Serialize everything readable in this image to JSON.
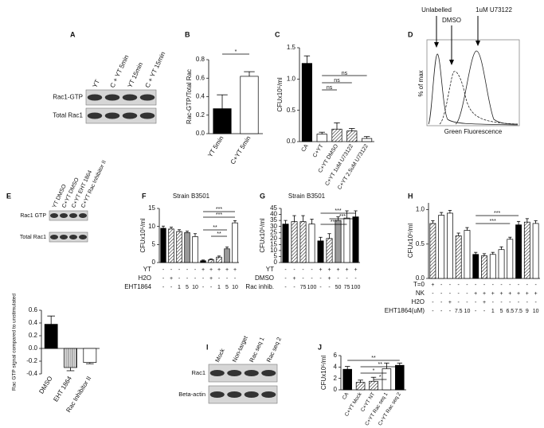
{
  "chart_data": [
    {
      "type": "bar",
      "panel": "B",
      "ylabel": "Rac-GTP/Total Rac",
      "categories": [
        "YT 5min",
        "C+YT 5min"
      ],
      "values": [
        0.27,
        0.62
      ],
      "errors": [
        0.15,
        0.05
      ],
      "fills": [
        "black",
        "white"
      ],
      "ylim": [
        0,
        0.8
      ],
      "yticks": [
        {
          "value": 0,
          "label": "0.0"
        },
        0.2,
        0.4,
        0.6,
        0.8
      ],
      "annotations": [
        "*"
      ]
    },
    {
      "type": "bar",
      "panel": "C",
      "ylabel": "CFUx10⁵/ml",
      "categories": [
        "CA",
        "C+YT",
        "C+YT DMSO",
        "C+YT 1uM U73122",
        "C+YT 2.5uM U73122"
      ],
      "values": [
        1.25,
        0.12,
        0.2,
        0.17,
        0.05
      ],
      "errors": [
        0.12,
        0.03,
        0.1,
        0.04,
        0.03
      ],
      "fills": [
        "black",
        "white",
        "hatch",
        "hatch",
        "white"
      ],
      "ylim": [
        0,
        1.5
      ],
      "yticks": [
        {
          "value": 0,
          "label": "0.0"
        },
        0.5,
        {
          "value": 1,
          "label": "1.0"
        },
        1.5
      ],
      "annotations": [
        "ns",
        "ns",
        "ns"
      ]
    },
    {
      "type": "bar",
      "panel": "E",
      "ylabel": "Rac GTP signal compared to unstimulated",
      "categories": [
        "DMSO",
        "EHT 1864",
        "Rac Inhibitor II"
      ],
      "values": [
        0.38,
        -0.3,
        -0.22
      ],
      "errors": [
        0.13,
        0.05,
        0.02
      ],
      "fills": [
        "black",
        "vstripe",
        "white"
      ],
      "ylim": [
        -0.4,
        0.6
      ],
      "yticks": [
        -0.4,
        -0.2,
        {
          "value": 0,
          "label": "0.0"
        },
        0.2,
        0.4,
        0.6
      ],
      "annotations": []
    },
    {
      "type": "bar",
      "panel": "F",
      "title": "Strain B3501",
      "ylabel": "CFUx10⁵/ml",
      "values": [
        9.5,
        9.3,
        8.6,
        8.3,
        7.2,
        0.5,
        0.8,
        1.5,
        3.8,
        11
      ],
      "errors": [
        0.6,
        0.5,
        0.5,
        0.4,
        0.8,
        0.2,
        0.2,
        0.3,
        0.5,
        0.6
      ],
      "fills": [
        "black",
        "hatch",
        "hatch",
        "grey",
        "white",
        "black",
        "hatch",
        "hatch",
        "grey",
        "white"
      ],
      "ylim": [
        0,
        15
      ],
      "yticks": [
        0,
        5,
        10,
        15
      ],
      "conditions": [
        {
          "label": "YT",
          "values": [
            "-",
            "-",
            "-",
            "-",
            "-",
            "+",
            "+",
            "+",
            "+",
            "+"
          ]
        },
        {
          "label": "H2O",
          "values": [
            "-",
            "+",
            "-",
            "-",
            "-",
            "-",
            "+",
            "-",
            "-",
            "-"
          ]
        },
        {
          "label": "EHT1864",
          "values": [
            "-",
            "-",
            "1",
            "5",
            "10",
            "-",
            "-",
            "1",
            "5",
            "10"
          ]
        }
      ],
      "annotations": [
        "***",
        "***",
        "**",
        "**"
      ]
    },
    {
      "type": "bar",
      "panel": "G",
      "title": "Strain B3501",
      "ylabel": "CFUx10⁵/ml",
      "values": [
        32,
        34,
        34,
        32,
        18,
        20,
        35,
        37,
        38
      ],
      "errors": [
        3,
        5,
        5,
        4,
        3,
        4,
        3,
        6,
        5
      ],
      "fills": [
        "black",
        "hatch",
        "hatch",
        "white",
        "black",
        "hatch",
        "grey",
        "white",
        "black"
      ],
      "ylim": [
        0,
        45
      ],
      "yticks": [
        0,
        5,
        10,
        15,
        20,
        25,
        30,
        35,
        40,
        45
      ],
      "conditions": [
        {
          "label": "YT",
          "values": [
            "-",
            "-",
            "-",
            "-",
            "+",
            "+",
            "+",
            "+",
            "+"
          ]
        },
        {
          "label": "DMSO",
          "values": [
            "-",
            "+",
            "-",
            "-",
            "-",
            "+",
            "-",
            "-",
            "-"
          ]
        },
        {
          "label": "Rac inhib.",
          "values": [
            "-",
            "-",
            "75",
            "100",
            "-",
            "-",
            "50",
            "75",
            "100"
          ]
        }
      ],
      "annotations": [
        "***",
        "***",
        "***"
      ]
    },
    {
      "type": "bar",
      "panel": "H",
      "ylabel": "CFUx10⁵/ml",
      "values": [
        0.8,
        0.92,
        0.95,
        0.62,
        0.7,
        0.35,
        0.33,
        0.35,
        0.42,
        0.57,
        0.78,
        0.82,
        0.8
      ],
      "errors": [
        0.04,
        0.04,
        0.04,
        0.04,
        0.04,
        0.03,
        0.03,
        0.03,
        0.04,
        0.03,
        0.05,
        0.05,
        0.04
      ],
      "fills": [
        "hatch",
        "white",
        "white",
        "hatch",
        "white",
        "black",
        "hatch",
        "white",
        "white",
        "white",
        "black",
        "hatch",
        "white"
      ],
      "ylim": [
        0,
        1.1
      ],
      "yticks": [
        {
          "value": 0,
          "label": "0.0"
        },
        0.5,
        {
          "value": 1,
          "label": "1.0"
        }
      ],
      "conditions": [
        {
          "label": "T=0",
          "values": [
            "+",
            "-",
            "-",
            "-",
            "-",
            "-",
            "-",
            "-",
            "-",
            "-",
            "-",
            "-",
            "-"
          ]
        },
        {
          "label": "NK",
          "values": [
            "-",
            "-",
            "-",
            "-",
            "-",
            "+",
            "+",
            "+",
            "+",
            "+",
            "+",
            "+",
            "+"
          ]
        },
        {
          "label": "H2O",
          "values": [
            "-",
            "-",
            "+",
            "-",
            "-",
            "-",
            "+",
            "-",
            "-",
            "-",
            "-",
            "-",
            "-"
          ]
        },
        {
          "label": "EHT1864(uM)",
          "values": [
            "-",
            "-",
            "-",
            "7.5",
            "10",
            "-",
            "-",
            "1",
            "5",
            "6.5",
            "7.5",
            "9",
            "10"
          ]
        }
      ],
      "annotations": [
        "***",
        "***"
      ]
    },
    {
      "type": "bar",
      "panel": "J",
      "ylabel": "CFUx10⁵/ml",
      "categories": [
        "CA",
        "C+YT Mock",
        "C+YT NT",
        "C+YT Rac seq 1",
        "C+YT Rac seq 2"
      ],
      "values": [
        3.6,
        1.3,
        1.5,
        3.7,
        4.3
      ],
      "errors": [
        0.5,
        0.4,
        0.7,
        1.0,
        0.4
      ],
      "fills": [
        "black",
        "hatch",
        "hatch",
        "white",
        "black"
      ],
      "ylim": [
        0,
        6
      ],
      "yticks": [
        0,
        2,
        4,
        6
      ],
      "annotations": [
        "**",
        "**",
        "*",
        "*"
      ]
    }
  ],
  "blots": [
    {
      "panel": "A",
      "lanes": [
        "YT",
        "C + YT 5min",
        "YT 15min",
        "C + YT 15min"
      ],
      "rows": [
        "Rac1-GTP",
        "Total Rac1"
      ]
    },
    {
      "panel": "E",
      "lanes": [
        "YT DMSO",
        "C+YT DMSO",
        "C+YT EHT 1864",
        "C+YT Rac Inhibitor II"
      ],
      "rows": [
        "Rac1 GTP",
        "Total Rac1"
      ]
    },
    {
      "panel": "I",
      "lanes": [
        "Mock",
        "Non-target",
        "Rac seq 1",
        "Rac seq 2"
      ],
      "rows": [
        "Rac1",
        "Beta-actin"
      ]
    }
  ],
  "flow": {
    "panel": "D",
    "labels": [
      "Unlabelled",
      "DMSO",
      "1uM U73122"
    ],
    "ylabel": "% of max",
    "xlabel": "Green Fluorescence"
  }
}
